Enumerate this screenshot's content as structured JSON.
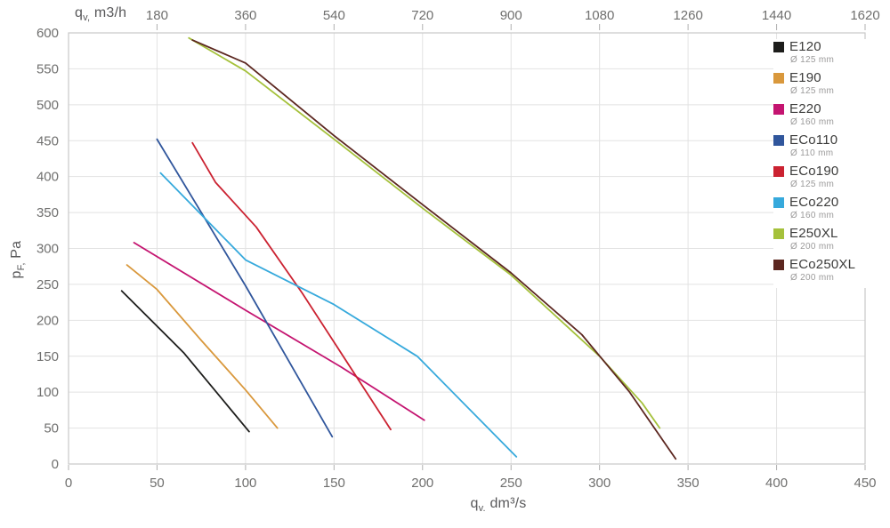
{
  "chart_data": {
    "type": "line",
    "title": "",
    "grid": true,
    "legend_position": "top-right",
    "xlim": [
      0,
      450
    ],
    "ylim": [
      0,
      600
    ],
    "x_ticks_bottom": [
      0,
      50,
      100,
      150,
      200,
      250,
      300,
      350,
      400,
      450
    ],
    "x_ticks_top": [
      180,
      360,
      540,
      720,
      900,
      1080,
      1260,
      1440,
      1620
    ],
    "y_ticks": [
      0,
      50,
      100,
      150,
      200,
      250,
      300,
      350,
      400,
      450,
      500,
      550,
      600
    ],
    "xlabel_bottom": {
      "base": "q",
      "sub": "v.",
      "unit": " dm³/s"
    },
    "xlabel_top": {
      "base": "q",
      "sub": "v,",
      "unit": " m3/h"
    },
    "ylabel": {
      "base": "p",
      "sub": "F,",
      "unit": " Pa"
    },
    "colors": {
      "gridline": "#e2e2e2",
      "plot_border": "#c9c9c9",
      "tick_mark": "#b0b0b0",
      "tick_text": "#6f6f6e",
      "axis_title_text": "#58585a"
    },
    "series": [
      {
        "name": "E120",
        "diameter": "Ø 125 mm",
        "color": "#1d1d1b",
        "points": [
          [
            30,
            241
          ],
          [
            65,
            155
          ],
          [
            102,
            45
          ]
        ]
      },
      {
        "name": "E190",
        "diameter": "Ø 125 mm",
        "color": "#d9983c",
        "points": [
          [
            33,
            277
          ],
          [
            50,
            243
          ],
          [
            75,
            172
          ],
          [
            100,
            103
          ],
          [
            118,
            50
          ]
        ]
      },
      {
        "name": "E220",
        "diameter": "Ø 160 mm",
        "color": "#c41470",
        "points": [
          [
            37,
            308
          ],
          [
            100,
            214
          ],
          [
            154,
            135
          ],
          [
            201,
            61
          ]
        ]
      },
      {
        "name": "ECo110",
        "diameter": "Ø 110 mm",
        "color": "#30569c",
        "points": [
          [
            50,
            452
          ],
          [
            100,
            248
          ],
          [
            149,
            38
          ]
        ]
      },
      {
        "name": "ECo190",
        "diameter": "Ø 125 mm",
        "color": "#cb2231",
        "points": [
          [
            70,
            447
          ],
          [
            83,
            392
          ],
          [
            106,
            330
          ],
          [
            132,
            238
          ],
          [
            182,
            48
          ]
        ]
      },
      {
        "name": "ECo220",
        "diameter": "Ø 160 mm",
        "color": "#36a9dc",
        "points": [
          [
            52,
            405
          ],
          [
            100,
            284
          ],
          [
            150,
            222
          ],
          [
            197,
            150
          ],
          [
            253,
            10
          ]
        ]
      },
      {
        "name": "E250XL",
        "diameter": "Ø 200 mm",
        "color": "#a5c13b",
        "points": [
          [
            68,
            593
          ],
          [
            100,
            547
          ],
          [
            150,
            452
          ],
          [
            200,
            356
          ],
          [
            250,
            263
          ],
          [
            300,
            150
          ],
          [
            324,
            85
          ],
          [
            334,
            50
          ]
        ]
      },
      {
        "name": "ECo250XL",
        "diameter": "Ø 200 mm",
        "color": "#5c2720",
        "points": [
          [
            70,
            590
          ],
          [
            100,
            558
          ],
          [
            150,
            457
          ],
          [
            200,
            361
          ],
          [
            250,
            266
          ],
          [
            290,
            180
          ],
          [
            317,
            100
          ],
          [
            343,
            7
          ]
        ]
      }
    ]
  }
}
